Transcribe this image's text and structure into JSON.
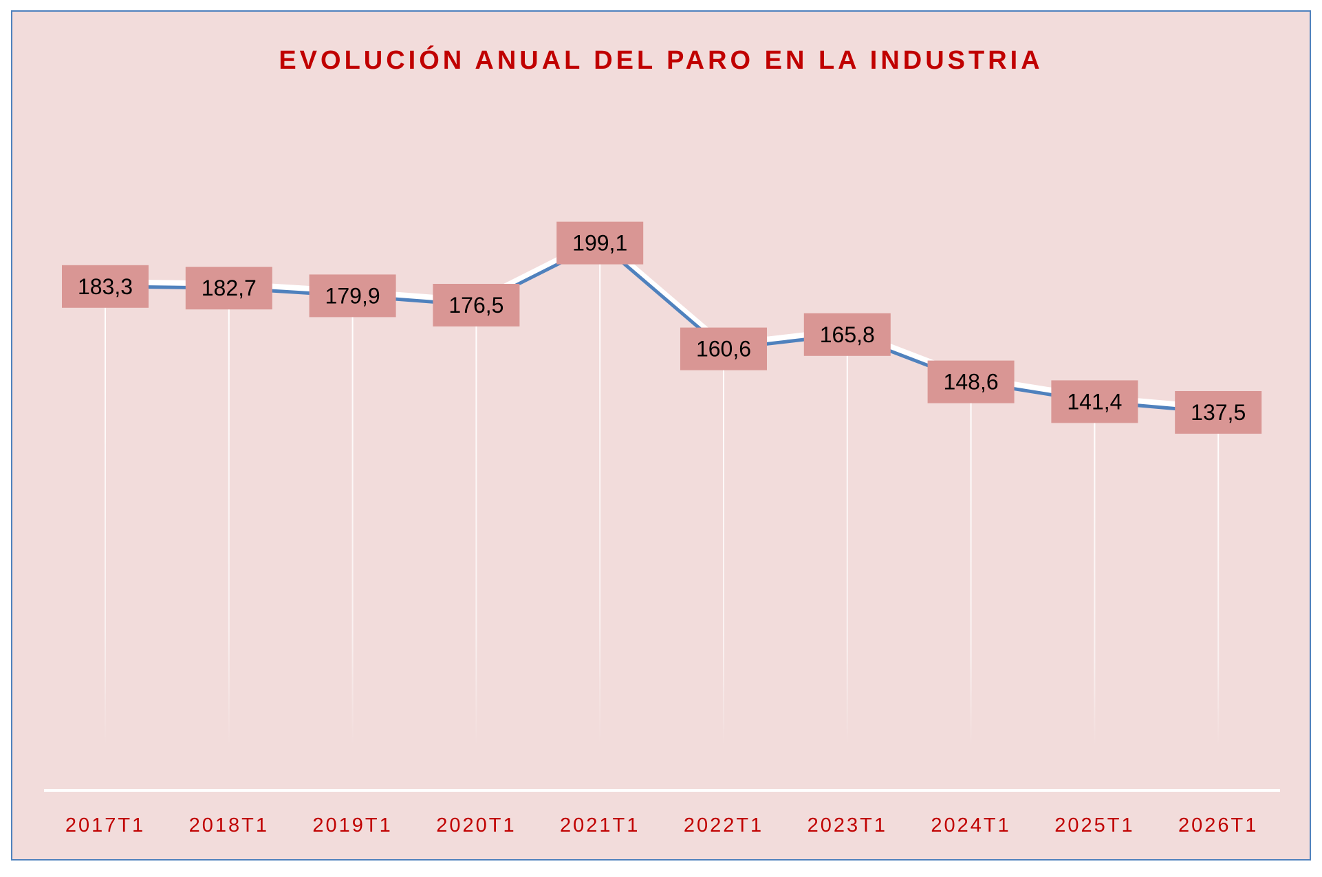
{
  "chart_data": {
    "type": "line",
    "title": "EVOLUCIÓN ANUAL DEL PARO EN LA INDUSTRIA",
    "categories": [
      "2017T1",
      "2018T1",
      "2019T1",
      "2020T1",
      "2021T1",
      "2022T1",
      "2023T1",
      "2024T1",
      "2025T1",
      "2026T1"
    ],
    "series": [
      {
        "values": [
          183.3,
          182.7,
          179.9,
          176.5,
          199.1,
          160.6,
          165.8,
          148.6,
          141.4,
          137.5
        ]
      }
    ],
    "data_labels": [
      "183,3",
      "182,7",
      "179,9",
      "176,5",
      "199,1",
      "160,6",
      "165,8",
      "148,6",
      "141,4",
      "137,5"
    ],
    "ylim": [
      0,
      250
    ],
    "grid": false,
    "drop_lines": true,
    "colors": {
      "background": "#f2dcdb",
      "line": "#4f81bd",
      "label_box": "#d99694",
      "title": "#c00000",
      "axis_labels": "#c00000",
      "border": "#4f81bd"
    }
  }
}
